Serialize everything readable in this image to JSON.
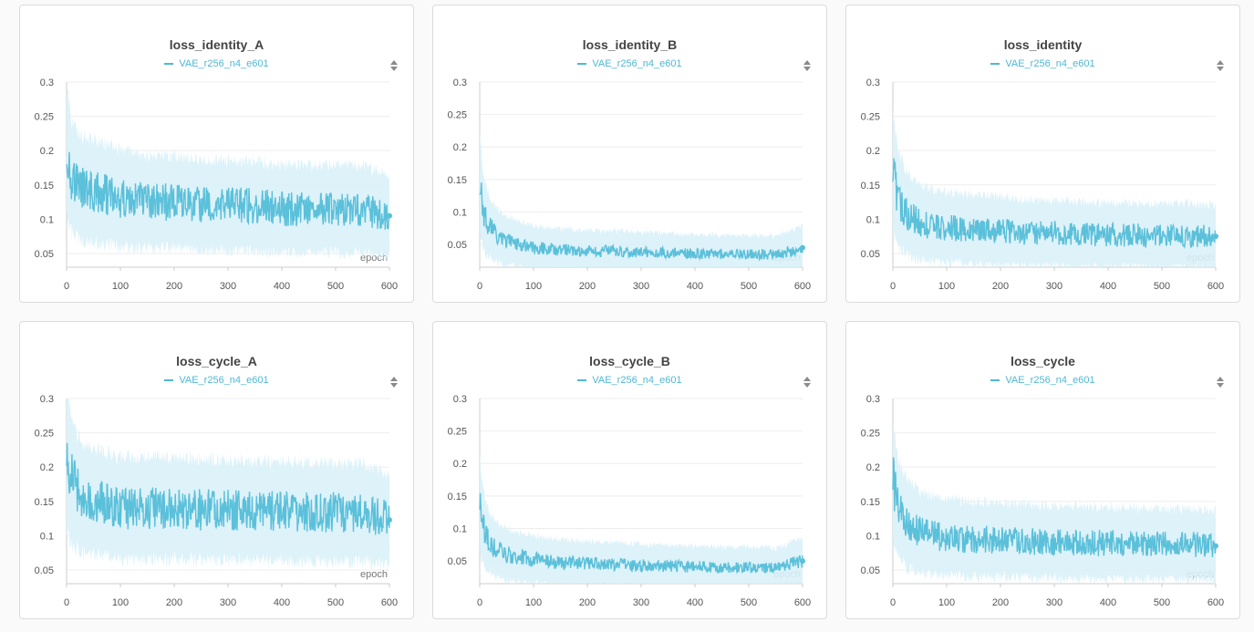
{
  "colors": {
    "line": "#5bc0da",
    "band": "#d9f1f8",
    "legend": "#4fb8d4"
  },
  "chart_data": [
    {
      "type": "line",
      "title": "loss_identity_A",
      "xlabel": "epoch",
      "xlim": [
        0,
        600
      ],
      "ylim": [
        0.03,
        0.3
      ],
      "xticks": [
        "0",
        "100",
        "200",
        "300",
        "400",
        "500",
        "600"
      ],
      "yticks": [
        "0.3",
        "0.25",
        "0.2",
        "0.15",
        "0.1",
        "0.05"
      ],
      "series": [
        {
          "name": "VAE_r256_n4_e601",
          "x": [
            0,
            5,
            10,
            20,
            30,
            50,
            75,
            100,
            150,
            200,
            250,
            300,
            350,
            400,
            450,
            500,
            550,
            600
          ],
          "y": [
            0.2,
            0.18,
            0.16,
            0.15,
            0.145,
            0.14,
            0.135,
            0.13,
            0.125,
            0.125,
            0.12,
            0.12,
            0.12,
            0.115,
            0.115,
            0.115,
            0.115,
            0.105
          ]
        }
      ]
    },
    {
      "type": "line",
      "title": "loss_identity_B",
      "xlabel": "epoch",
      "xlim": [
        0,
        600
      ],
      "ylim": [
        0.015,
        0.3
      ],
      "xticks": [
        "0",
        "100",
        "200",
        "300",
        "400",
        "500",
        "600"
      ],
      "yticks": [
        "0.3",
        "0.25",
        "0.2",
        "0.15",
        "0.1",
        "0.05"
      ],
      "series": [
        {
          "name": "VAE_r256_n4_e601",
          "x": [
            0,
            5,
            10,
            20,
            30,
            50,
            75,
            100,
            150,
            200,
            250,
            300,
            350,
            400,
            450,
            500,
            550,
            600
          ],
          "y": [
            0.14,
            0.11,
            0.09,
            0.075,
            0.065,
            0.055,
            0.05,
            0.045,
            0.042,
            0.04,
            0.04,
            0.038,
            0.037,
            0.036,
            0.035,
            0.035,
            0.034,
            0.045
          ]
        }
      ]
    },
    {
      "type": "line",
      "title": "loss_identity",
      "xlabel": "epoch",
      "xlim": [
        0,
        600
      ],
      "ylim": [
        0.03,
        0.3
      ],
      "xticks": [
        "0",
        "100",
        "200",
        "300",
        "400",
        "500",
        "600"
      ],
      "yticks": [
        "0.3",
        "0.25",
        "0.2",
        "0.15",
        "0.1",
        "0.05"
      ],
      "series": [
        {
          "name": "VAE_r256_n4_e601",
          "x": [
            0,
            5,
            10,
            20,
            30,
            50,
            75,
            100,
            150,
            200,
            250,
            300,
            350,
            400,
            450,
            500,
            550,
            600
          ],
          "y": [
            0.17,
            0.15,
            0.13,
            0.115,
            0.105,
            0.095,
            0.09,
            0.088,
            0.085,
            0.083,
            0.08,
            0.08,
            0.078,
            0.077,
            0.077,
            0.076,
            0.076,
            0.075
          ]
        }
      ]
    },
    {
      "type": "line",
      "title": "loss_cycle_A",
      "xlabel": "epoch",
      "xlim": [
        0,
        600
      ],
      "ylim": [
        0.03,
        0.3
      ],
      "xticks": [
        "0",
        "100",
        "200",
        "300",
        "400",
        "500",
        "600"
      ],
      "yticks": [
        "0.3",
        "0.25",
        "0.2",
        "0.15",
        "0.1",
        "0.05"
      ],
      "series": [
        {
          "name": "VAE_r256_n4_e601",
          "x": [
            0,
            5,
            10,
            20,
            30,
            50,
            75,
            100,
            150,
            200,
            250,
            300,
            350,
            400,
            450,
            500,
            550,
            600
          ],
          "y": [
            0.22,
            0.2,
            0.18,
            0.165,
            0.155,
            0.15,
            0.145,
            0.14,
            0.14,
            0.14,
            0.138,
            0.137,
            0.136,
            0.135,
            0.135,
            0.134,
            0.134,
            0.123
          ]
        }
      ]
    },
    {
      "type": "line",
      "title": "loss_cycle_B",
      "xlabel": "epoch",
      "xlim": [
        0,
        600
      ],
      "ylim": [
        0.015,
        0.3
      ],
      "xticks": [
        "0",
        "100",
        "200",
        "300",
        "400",
        "500",
        "600"
      ],
      "yticks": [
        "0.3",
        "0.25",
        "0.2",
        "0.15",
        "0.1",
        "0.05"
      ],
      "series": [
        {
          "name": "VAE_r256_n4_e601",
          "x": [
            0,
            5,
            10,
            20,
            30,
            50,
            75,
            100,
            150,
            200,
            250,
            300,
            350,
            400,
            450,
            500,
            550,
            600
          ],
          "y": [
            0.14,
            0.11,
            0.09,
            0.075,
            0.068,
            0.06,
            0.055,
            0.052,
            0.048,
            0.046,
            0.045,
            0.043,
            0.042,
            0.041,
            0.04,
            0.04,
            0.039,
            0.05
          ]
        }
      ]
    },
    {
      "type": "line",
      "title": "loss_cycle",
      "xlabel": "epoch",
      "xlim": [
        0,
        600
      ],
      "ylim": [
        0.03,
        0.3
      ],
      "xticks": [
        "0",
        "100",
        "200",
        "300",
        "400",
        "500",
        "600"
      ],
      "yticks": [
        "0.3",
        "0.25",
        "0.2",
        "0.15",
        "0.1",
        "0.05"
      ],
      "series": [
        {
          "name": "VAE_r256_n4_e601",
          "x": [
            0,
            5,
            10,
            20,
            30,
            50,
            75,
            100,
            150,
            200,
            250,
            300,
            350,
            400,
            450,
            500,
            550,
            600
          ],
          "y": [
            0.18,
            0.16,
            0.14,
            0.125,
            0.115,
            0.105,
            0.1,
            0.098,
            0.095,
            0.093,
            0.092,
            0.09,
            0.09,
            0.089,
            0.088,
            0.088,
            0.087,
            0.085
          ]
        }
      ]
    }
  ]
}
